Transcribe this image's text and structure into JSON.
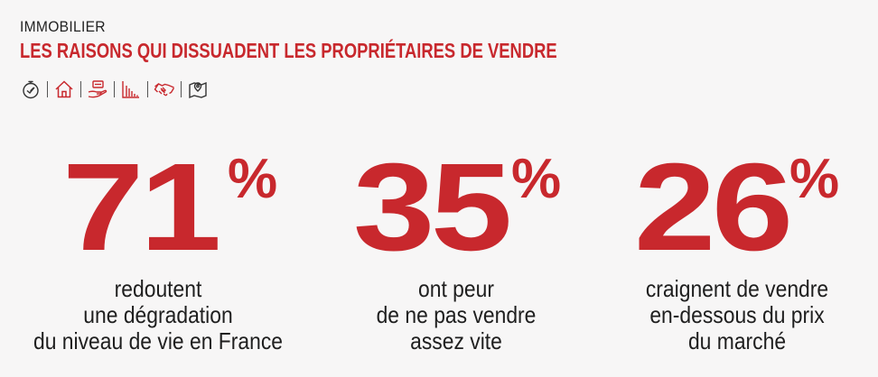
{
  "header": {
    "kicker": "IMMOBILIER",
    "title": "LES RAISONS QUI DISSUADENT LES PROPRIÉTAIRES DE VENDRE"
  },
  "icons": [
    "stopwatch-icon",
    "house-icon",
    "hand-money-icon",
    "bar-chart-icon",
    "handshake-icon",
    "map-pin-icon"
  ],
  "colors": {
    "accent": "#c8282d",
    "text": "#1c1c1c",
    "background": "#f7f6f6"
  },
  "stats": [
    {
      "value": "71",
      "percent_sign": "%",
      "lines": [
        "redoutent",
        "une dégradation",
        "du niveau de vie en France"
      ]
    },
    {
      "value": "35",
      "percent_sign": "%",
      "lines": [
        "ont peur",
        "de ne pas vendre",
        "assez vite"
      ]
    },
    {
      "value": "26",
      "percent_sign": "%",
      "lines": [
        "craignent de vendre",
        "en-dessous du prix",
        "du marché"
      ]
    }
  ]
}
